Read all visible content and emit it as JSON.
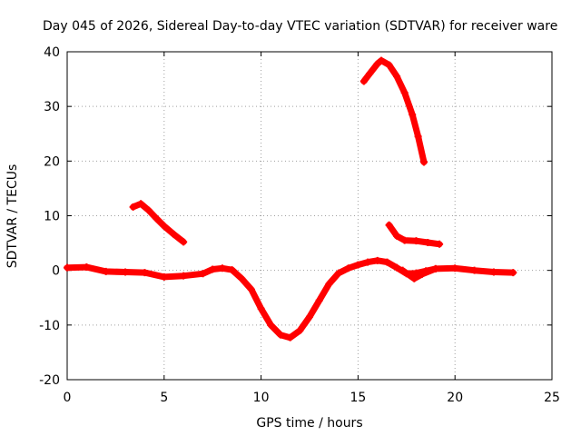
{
  "chart_data": {
    "type": "scatter",
    "title": "Day 045 of 2026, Sidereal Day-to-day VTEC variation (SDTVAR) for receiver ware",
    "xlabel": "GPS time / hours",
    "ylabel": "SDTVAR / TECUs",
    "xlim": [
      0,
      25
    ],
    "ylim": [
      -20,
      40
    ],
    "xticks": [
      0,
      5,
      10,
      15,
      20,
      25
    ],
    "yticks": [
      -20,
      -10,
      0,
      10,
      20,
      30,
      40
    ],
    "grid": true,
    "series_color": "#ff0000",
    "series": [
      {
        "name": "main-trace",
        "points": [
          [
            0,
            0.5
          ],
          [
            1,
            0.6
          ],
          [
            2,
            -0.2
          ],
          [
            3,
            -0.3
          ],
          [
            4,
            -0.4
          ],
          [
            5,
            -1.2
          ],
          [
            6,
            -1.0
          ],
          [
            7,
            -0.6
          ],
          [
            7.5,
            0.2
          ],
          [
            8,
            0.4
          ],
          [
            8.5,
            0.1
          ],
          [
            9,
            -1.5
          ],
          [
            9.5,
            -3.5
          ],
          [
            10,
            -7
          ],
          [
            10.5,
            -10
          ],
          [
            11,
            -11.8
          ],
          [
            11.5,
            -12.3
          ],
          [
            12,
            -11
          ],
          [
            12.5,
            -8.5
          ],
          [
            13,
            -5.5
          ],
          [
            13.5,
            -2.5
          ],
          [
            14,
            -0.5
          ],
          [
            14.5,
            0.4
          ],
          [
            15,
            1.0
          ],
          [
            15.5,
            1.5
          ],
          [
            16,
            1.8
          ],
          [
            16.5,
            1.5
          ],
          [
            17,
            0.5
          ],
          [
            17.5,
            -0.6
          ],
          [
            18,
            -0.5
          ],
          [
            18.5,
            -0.1
          ],
          [
            19,
            0.3
          ],
          [
            20,
            0.4
          ],
          [
            21,
            0
          ],
          [
            22,
            -0.3
          ],
          [
            23,
            -0.4
          ]
        ]
      },
      {
        "name": "arc-5h",
        "points": [
          [
            3.4,
            11.6
          ],
          [
            3.8,
            12.2
          ],
          [
            4.2,
            11.0
          ],
          [
            4.6,
            9.5
          ],
          [
            5.0,
            8.1
          ],
          [
            5.5,
            6.6
          ],
          [
            6.0,
            5.2
          ]
        ]
      },
      {
        "name": "arc-16h",
        "points": [
          [
            15.3,
            34.6
          ],
          [
            15.6,
            36.0
          ],
          [
            16.0,
            37.8
          ],
          [
            16.2,
            38.4
          ],
          [
            16.6,
            37.6
          ],
          [
            17.0,
            35.5
          ],
          [
            17.4,
            32.5
          ],
          [
            17.8,
            28.5
          ],
          [
            18.1,
            24.5
          ],
          [
            18.4,
            19.8
          ]
        ]
      },
      {
        "name": "arc-18h",
        "points": [
          [
            16.6,
            8.3
          ],
          [
            17.0,
            6.3
          ],
          [
            17.4,
            5.5
          ],
          [
            18.0,
            5.4
          ],
          [
            18.6,
            5.1
          ],
          [
            19.2,
            4.8
          ]
        ]
      },
      {
        "name": "fragment-18h",
        "points": [
          [
            17.3,
            0
          ],
          [
            17.9,
            -1.5
          ],
          [
            18.3,
            -0.7
          ],
          [
            19.0,
            0.3
          ]
        ]
      }
    ]
  }
}
